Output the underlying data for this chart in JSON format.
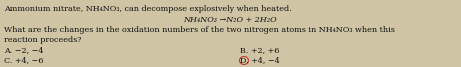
{
  "line1": "Ammonium nitrate, NH₄NO₃, can decompose explosively when heated.",
  "line2": "NH₄NO₃ →N₂O + 2H₂O",
  "line3": "What are the changes in the oxidation numbers of the two nitrogen atoms in NH₄NO₃ when this",
  "line4": "reaction proceeds?",
  "optA": "A. −2, −4",
  "optB": "B. +2, +6",
  "optC": "C. +4, −6",
  "optD": "D. +4, −4",
  "bg_color": "#cfc5a5",
  "text_color": "#111111",
  "circle_color": "#c0392b",
  "fontsize": 5.8,
  "fig_width": 4.61,
  "fig_height": 0.67,
  "dpi": 100
}
